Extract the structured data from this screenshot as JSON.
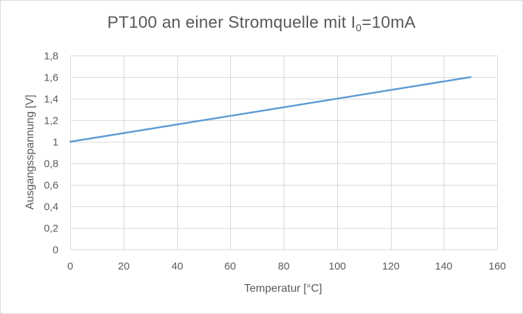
{
  "chart_data": {
    "type": "line",
    "title": "PT100 an einer Stromquelle mit I",
    "title_subscript": "0",
    "title_suffix": "=10mA",
    "xlabel": "Temperatur [°C]",
    "ylabel": "Ausgangsspannung [V]",
    "xlim": [
      0,
      160
    ],
    "ylim": [
      0,
      1.8
    ],
    "x_ticks": [
      0,
      20,
      40,
      60,
      80,
      100,
      120,
      140,
      160
    ],
    "y_ticks": [
      0,
      0.2,
      0.4,
      0.6,
      0.8,
      1,
      1.2,
      1.4,
      1.6,
      1.8
    ],
    "x_tick_labels": [
      "0",
      "20",
      "40",
      "60",
      "80",
      "100",
      "120",
      "140",
      "160"
    ],
    "y_tick_labels": [
      "0",
      "0,2",
      "0,4",
      "0,6",
      "0,8",
      "1",
      "1,2",
      "1,4",
      "1,6",
      "1,8"
    ],
    "grid": true,
    "legend": "none",
    "series": [
      {
        "color": "#5b9bd5",
        "x": [
          0,
          150
        ],
        "y": [
          1.0,
          1.6
        ]
      }
    ],
    "colors": {
      "grid": "#d9d9d9",
      "text": "#595959",
      "border": "#d9d9d9"
    }
  }
}
